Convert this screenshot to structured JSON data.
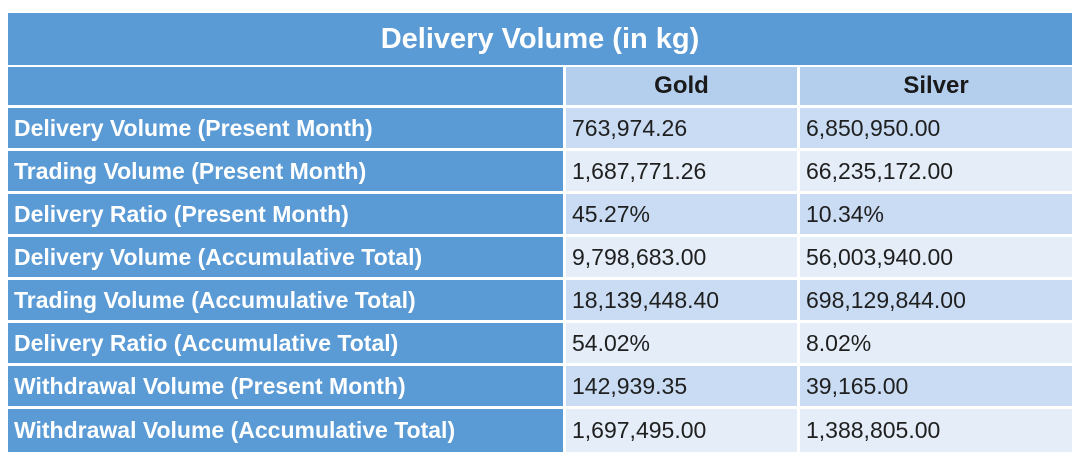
{
  "table": {
    "title": "Delivery Volume (in kg)",
    "columns": [
      "",
      "Gold",
      "Silver"
    ],
    "rows": [
      {
        "label": "Delivery Volume (Present Month)",
        "gold": "763,974.26",
        "silver": "6,850,950.00"
      },
      {
        "label": "Trading Volume (Present Month)",
        "gold": "1,687,771.26",
        "silver": "66,235,172.00"
      },
      {
        "label": "Delivery Ratio (Present Month)",
        "gold": "45.27%",
        "silver": "10.34%"
      },
      {
        "label": "Delivery Volume (Accumulative Total)",
        "gold": "9,798,683.00",
        "silver": "56,003,940.00"
      },
      {
        "label": "Trading Volume (Accumulative Total)",
        "gold": "18,139,448.40",
        "silver": "698,129,844.00"
      },
      {
        "label": "Delivery Ratio (Accumulative Total)",
        "gold": "54.02%",
        "silver": "8.02%"
      },
      {
        "label": "Withdrawal Volume (Present Month)",
        "gold": "142,939.35",
        "silver": "39,165.00"
      },
      {
        "label": "Withdrawal Volume (Accumulative Total)",
        "gold": "1,697,495.00",
        "silver": "1,388,805.00"
      }
    ]
  },
  "colors": {
    "header_blue": "#5b9bd5",
    "column_header": "#b4cfee",
    "row_band_dark": "#c9dcf3",
    "row_band_light": "#e4edf8"
  }
}
